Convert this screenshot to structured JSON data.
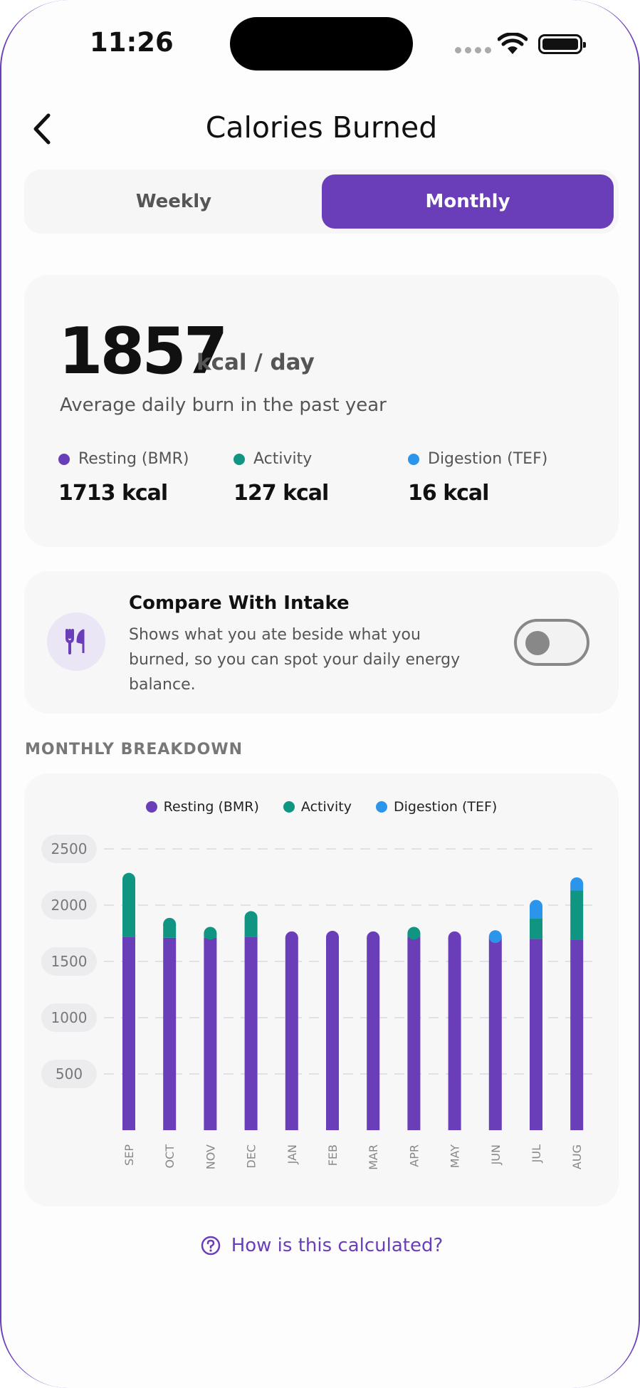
{
  "status_bar": {
    "time": "11:26"
  },
  "header": {
    "title": "Calories Burned"
  },
  "period_toggle": {
    "weekly_label": "Weekly",
    "monthly_label": "Monthly",
    "selected": "Monthly"
  },
  "summary": {
    "value": "1857",
    "unit": "kcal / day",
    "subtitle": "Average daily burn in the past year",
    "stats": [
      {
        "label": "Resting (BMR)",
        "value": "1713 kcal",
        "color": "#6a3db9"
      },
      {
        "label": "Activity",
        "value": "127 kcal",
        "color": "#0f9582"
      },
      {
        "label": "Digestion (TEF)",
        "value": "16 kcal",
        "color": "#2b95ec"
      }
    ]
  },
  "compare": {
    "title": "Compare With Intake",
    "description": "Shows what you ate beside what you burned, so you can spot your daily energy balance.",
    "enabled": false
  },
  "section_title": "MONTHLY BREAKDOWN",
  "chart_data": {
    "type": "bar",
    "stacked": true,
    "categories": [
      "SEP",
      "OCT",
      "NOV",
      "DEC",
      "JAN",
      "FEB",
      "MAR",
      "APR",
      "MAY",
      "JUN",
      "JUL",
      "AUG"
    ],
    "series": [
      {
        "name": "Resting (BMR)",
        "color": "#6a3db9",
        "values": [
          1720,
          1710,
          1710,
          1720,
          1710,
          1715,
          1710,
          1720,
          1710,
          1710,
          1700,
          1690
        ]
      },
      {
        "name": "Activity",
        "color": "#0f9582",
        "values": [
          510,
          120,
          40,
          170,
          0,
          0,
          0,
          30,
          0,
          0,
          180,
          440
        ]
      },
      {
        "name": "Digestion (TEF)",
        "color": "#2b95ec",
        "values": [
          0,
          0,
          0,
          0,
          0,
          0,
          0,
          0,
          0,
          10,
          110,
          60
        ]
      }
    ],
    "yticks": [
      500,
      1000,
      1500,
      2000,
      2500
    ],
    "ylim": [
      0,
      2500
    ],
    "grid": true,
    "legend_position": "top"
  },
  "help_link": {
    "label": "How is this calculated?"
  }
}
